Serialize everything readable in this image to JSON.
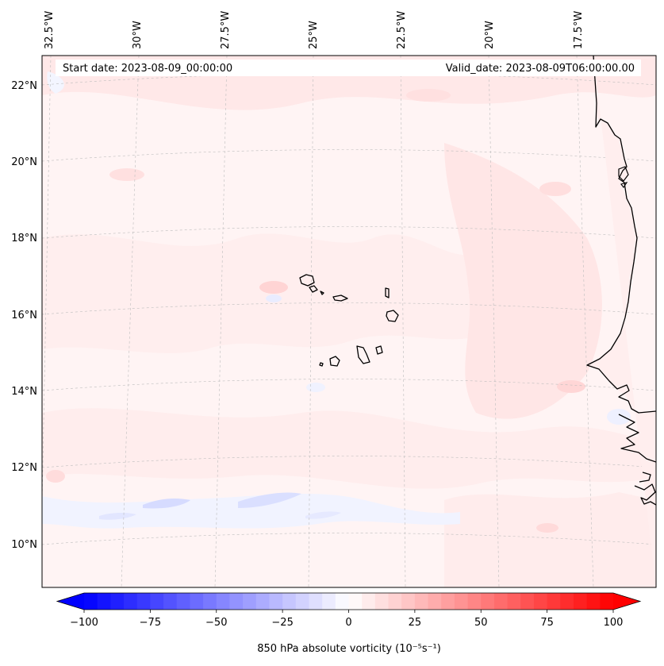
{
  "map": {
    "info_left": "Start date: 2023-08-09_00:00:00",
    "info_right": "Valid_date: 2023-08-09T06:00:00.00",
    "lon_labels": [
      "32.5°W",
      "30°W",
      "27.5°W",
      "25°W",
      "22.5°W",
      "20°W",
      "17.5°W"
    ],
    "lat_labels": [
      "22°N",
      "20°N",
      "18°N",
      "16°N",
      "14°N",
      "12°N",
      "10°N"
    ],
    "projection": "conic",
    "gridlines": true,
    "field_colors": {
      "positive": "#ff0000",
      "negative": "#0000ff",
      "neutral": "#ffffff",
      "coast": "#000000"
    }
  },
  "colorbar": {
    "label": "850 hPa absolute vorticity (10⁻⁵s⁻¹)",
    "ticks": [
      "−100",
      "−75",
      "−50",
      "−25",
      "0",
      "25",
      "50",
      "75",
      "100"
    ],
    "tick_values": [
      -100,
      -75,
      -50,
      -25,
      0,
      25,
      50,
      75,
      100
    ],
    "min": -100,
    "max": 100,
    "levels": 40,
    "extend": "both",
    "cmap": "bwr"
  }
}
